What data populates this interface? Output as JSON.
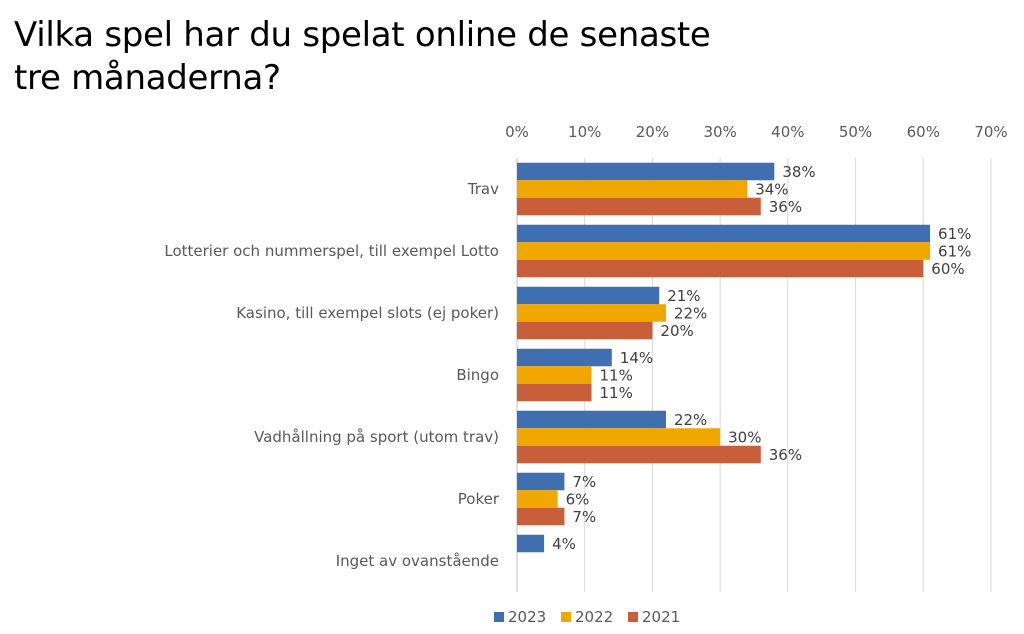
{
  "chart_data": {
    "type": "bar",
    "orientation": "horizontal",
    "title": "Vilka spel har du spelat online de senaste tre månaderna?",
    "categories": [
      "Trav",
      "Lotterier och nummerspel, till exempel Lotto",
      "Kasino, till exempel slots (ej poker)",
      "Bingo",
      "Vadhållning på sport (utom trav)",
      "Poker",
      "Inget av ovanstående"
    ],
    "series": [
      {
        "name": "2023",
        "color": "#3f6fb1",
        "values": [
          38,
          61,
          21,
          14,
          22,
          7,
          4
        ]
      },
      {
        "name": "2022",
        "color": "#f0a800",
        "values": [
          34,
          61,
          22,
          11,
          30,
          6,
          null
        ]
      },
      {
        "name": "2021",
        "color": "#c95f3a",
        "values": [
          36,
          60,
          20,
          11,
          36,
          7,
          null
        ]
      }
    ],
    "xlim": [
      0,
      70
    ],
    "xticks": [
      0,
      10,
      20,
      30,
      40,
      50,
      60,
      70
    ],
    "tick_suffix": "%",
    "grid": true,
    "axis_position": "top",
    "legend_position": "bottom"
  }
}
